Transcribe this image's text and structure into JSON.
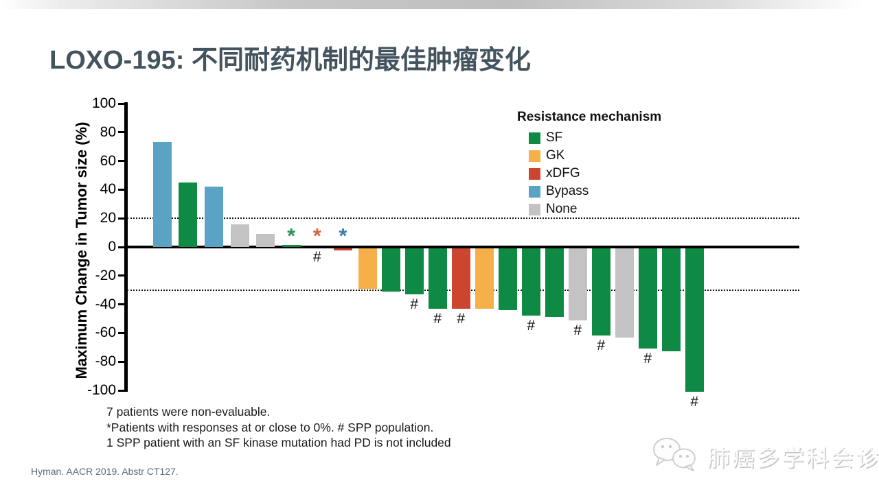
{
  "title": "LOXO-195: 不同耐药机制的最佳肿瘤变化",
  "legend": {
    "title": "Resistance mechanism",
    "items": [
      {
        "label": "SF",
        "color": "#0E8A44"
      },
      {
        "label": "GK",
        "color": "#F5B04A"
      },
      {
        "label": "xDFG",
        "color": "#CC452E"
      },
      {
        "label": "Bypass",
        "color": "#5BA3C4"
      },
      {
        "label": "None",
        "color": "#C3C3C3"
      }
    ]
  },
  "chart_data": {
    "type": "bar",
    "title": "",
    "xlabel": "",
    "ylabel": "Maximum Change in Tumor size (%)",
    "ylim": [
      -100,
      100
    ],
    "yticks": [
      100,
      80,
      60,
      40,
      20,
      0,
      -20,
      -40,
      -60,
      -80,
      -100
    ],
    "reference_lines": [
      20,
      -30
    ],
    "grid": false,
    "legend_position": "top-right",
    "marker_colors": {
      "SF": "#2E9456",
      "xDFG": "#D2684A",
      "Bypass": "#3B7FAE"
    },
    "bars": [
      {
        "value": 73,
        "mechanism": "Bypass"
      },
      {
        "value": 45,
        "mechanism": "SF"
      },
      {
        "value": 42,
        "mechanism": "Bypass"
      },
      {
        "value": 16,
        "mechanism": "None"
      },
      {
        "value": 9,
        "mechanism": "None"
      },
      {
        "value": 1.5,
        "mechanism": "SF",
        "star": "SF"
      },
      {
        "value": 0,
        "mechanism": "xDFG",
        "star": "xDFG",
        "hash": true
      },
      {
        "value": -1.5,
        "mechanism": "xDFG",
        "star": "Bypass"
      },
      {
        "value": -28,
        "mechanism": "GK"
      },
      {
        "value": -30,
        "mechanism": "SF"
      },
      {
        "value": -32,
        "mechanism": "SF",
        "hash": true
      },
      {
        "value": -42,
        "mechanism": "SF",
        "hash": true
      },
      {
        "value": -42,
        "mechanism": "xDFG",
        "hash": true
      },
      {
        "value": -42,
        "mechanism": "GK"
      },
      {
        "value": -43,
        "mechanism": "SF"
      },
      {
        "value": -47,
        "mechanism": "SF",
        "hash": true
      },
      {
        "value": -48,
        "mechanism": "SF"
      },
      {
        "value": -50,
        "mechanism": "None",
        "hash": true
      },
      {
        "value": -61,
        "mechanism": "SF",
        "hash": true
      },
      {
        "value": -62,
        "mechanism": "None"
      },
      {
        "value": -70,
        "mechanism": "SF",
        "hash": true
      },
      {
        "value": -72,
        "mechanism": "SF"
      },
      {
        "value": -100,
        "mechanism": "SF",
        "hash": true
      }
    ],
    "annotations": {
      "near_zero_symbol": "*",
      "spp_symbol": "#"
    }
  },
  "footnotes": [
    "7 patients were non-evaluable.",
    "*Patients with responses at or close to 0%. # SPP population.",
    "1 SPP patient with an SF kinase mutation had PD is not included"
  ],
  "citation": "Hyman. AACR 2019. Abstr CT127.",
  "watermark": {
    "text": "肺癌多学科会诊",
    "icon": "wechat-icon"
  }
}
